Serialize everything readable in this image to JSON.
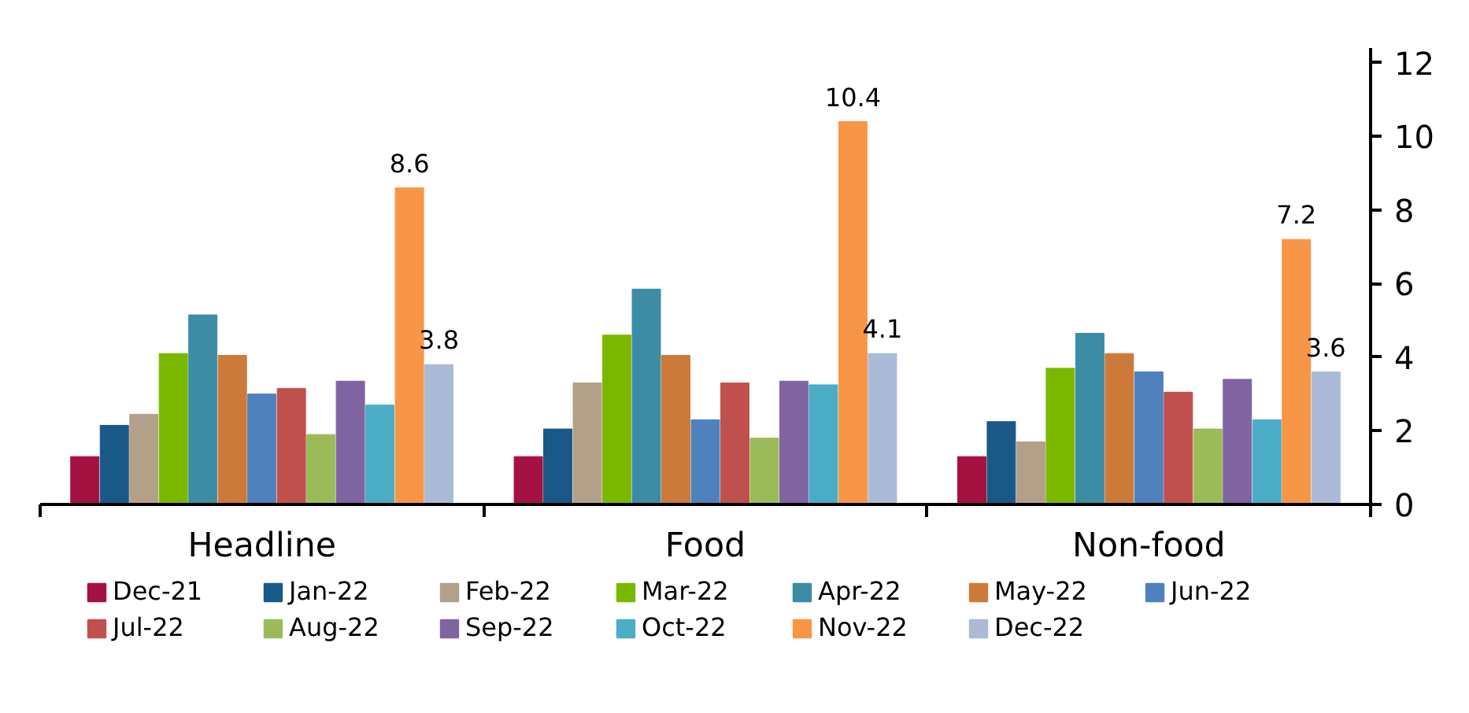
{
  "chart_data": {
    "type": "bar",
    "categories": [
      "Headline",
      "Food",
      "Non-food"
    ],
    "series": [
      {
        "name": "Dec-21",
        "color": "#a51140",
        "values": [
          1.3,
          1.3,
          1.3
        ]
      },
      {
        "name": "Jan-22",
        "color": "#1a5888",
        "values": [
          2.15,
          2.05,
          2.25
        ]
      },
      {
        "name": "Feb-22",
        "color": "#b3a088",
        "values": [
          2.45,
          3.3,
          1.7
        ]
      },
      {
        "name": "Mar-22",
        "color": "#7ab800",
        "values": [
          4.1,
          4.6,
          3.7
        ]
      },
      {
        "name": "Apr-22",
        "color": "#3d8ca5",
        "values": [
          5.15,
          5.85,
          4.65
        ]
      },
      {
        "name": "May-22",
        "color": "#cc7a3a",
        "values": [
          4.05,
          4.05,
          4.1
        ]
      },
      {
        "name": "Jun-22",
        "color": "#4f81bd",
        "values": [
          3.0,
          2.3,
          3.6
        ]
      },
      {
        "name": "Jul-22",
        "color": "#c0504d",
        "values": [
          3.15,
          3.3,
          3.05
        ]
      },
      {
        "name": "Aug-22",
        "color": "#9bbb59",
        "values": [
          1.9,
          1.8,
          2.05
        ]
      },
      {
        "name": "Sep-22",
        "color": "#8064a2",
        "values": [
          3.35,
          3.35,
          3.4
        ]
      },
      {
        "name": "Oct-22",
        "color": "#4bacc6",
        "values": [
          2.7,
          3.25,
          2.3
        ]
      },
      {
        "name": "Nov-22",
        "color": "#f79646",
        "values": [
          8.6,
          10.4,
          7.2
        ],
        "value_labels": [
          "8.6",
          "10.4",
          "7.2"
        ]
      },
      {
        "name": "Dec-22",
        "color": "#aabad7",
        "values": [
          3.8,
          4.1,
          3.6
        ],
        "value_labels": [
          "3.8",
          "4.1",
          "3.6"
        ]
      }
    ],
    "ylim": [
      0,
      12.4
    ],
    "yticks": [
      0,
      2,
      4,
      6,
      8,
      10,
      12
    ],
    "grid": false,
    "legend": "bottom"
  }
}
